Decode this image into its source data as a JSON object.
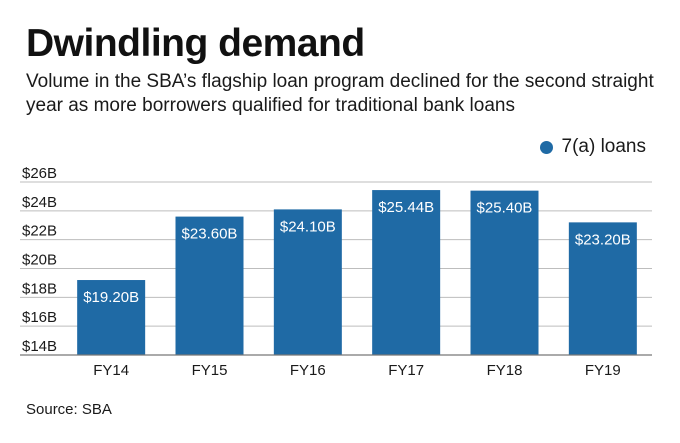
{
  "title": "Dwindling demand",
  "subtitle": "Volume in the SBA’s flagship loan program declined for the second straight year as more borrowers qualified for traditional bank loans",
  "source": "Source: SBA",
  "colors": {
    "bar": "#1f6aa5",
    "grid": "#bdbdbd",
    "axis": "#777777"
  },
  "chart_data": {
    "type": "bar",
    "title": "Dwindling demand",
    "xlabel": "",
    "ylabel": "",
    "categories": [
      "FY14",
      "FY15",
      "FY16",
      "FY17",
      "FY18",
      "FY19"
    ],
    "series": [
      {
        "name": "7(a) loans",
        "values": [
          19.2,
          23.6,
          24.1,
          25.44,
          25.4,
          23.2
        ],
        "labels": [
          "$19.20B",
          "$23.60B",
          "$24.10B",
          "$25.44B",
          "$25.40B",
          "$23.20B"
        ]
      }
    ],
    "ylim": [
      14,
      26
    ],
    "yticks": [
      14,
      16,
      18,
      20,
      22,
      24,
      26
    ],
    "ytick_labels": [
      "$14B",
      "$16B",
      "$18B",
      "$20B",
      "$22B",
      "$24B",
      "$26B"
    ],
    "grid": true,
    "legend_position": "top-right"
  }
}
